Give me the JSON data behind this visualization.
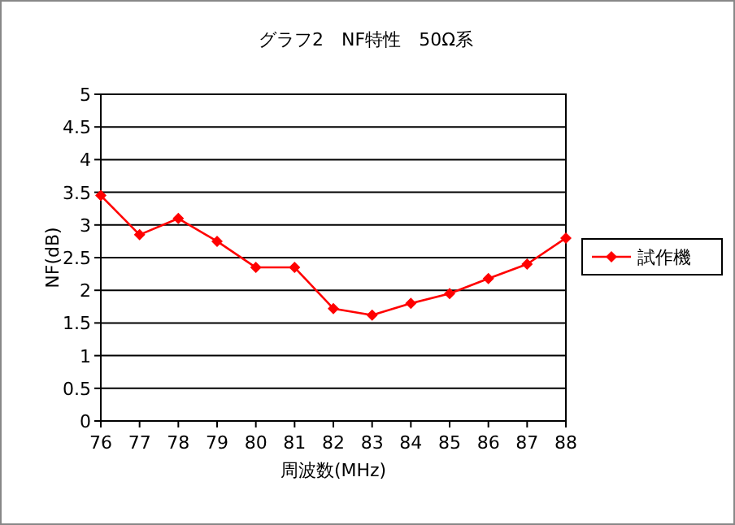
{
  "chart_data": {
    "type": "line",
    "title": "グラフ2　NF特性　50Ω系",
    "xlabel": "周波数(MHz)",
    "ylabel": "NF(dB)",
    "categories": [
      "76",
      "77",
      "78",
      "79",
      "80",
      "81",
      "82",
      "83",
      "84",
      "85",
      "86",
      "87",
      "88"
    ],
    "series": [
      {
        "name": "試作機",
        "color": "#ff0000",
        "values": [
          3.45,
          2.85,
          3.1,
          2.75,
          2.35,
          2.35,
          1.72,
          1.62,
          1.8,
          1.95,
          2.18,
          2.4,
          2.8
        ]
      }
    ],
    "ylim": [
      0,
      5
    ],
    "yticks": [
      0,
      0.5,
      1,
      1.5,
      2,
      2.5,
      3,
      3.5,
      4,
      4.5,
      5
    ],
    "grid": "y",
    "legend": "right",
    "marker": "diamond",
    "line_style": "solid"
  }
}
